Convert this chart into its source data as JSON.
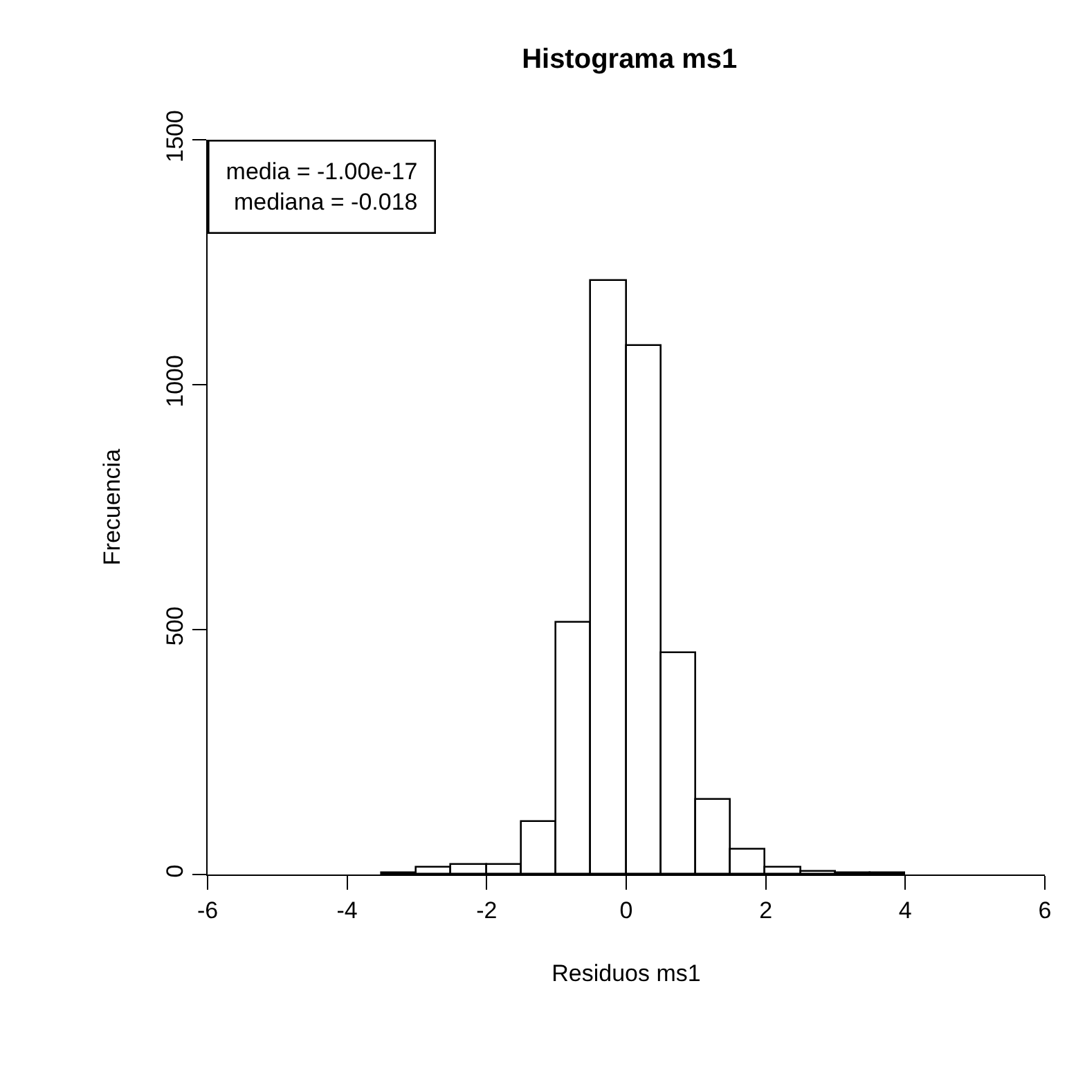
{
  "chart_data": {
    "type": "histogram",
    "title": "Histograma ms1",
    "xlabel": "Residuos ms1",
    "ylabel": "Frecuencia",
    "bins": [
      -3.5,
      -3,
      -2.5,
      -2,
      -1.5,
      -1,
      -0.5,
      0,
      0.5,
      1,
      1.5,
      2,
      2.5,
      3,
      3.5,
      4
    ],
    "values": [
      2,
      15,
      19,
      19,
      108,
      514,
      1212,
      1080,
      452,
      152,
      50,
      15,
      6,
      2,
      2
    ],
    "color": "#ffffff",
    "xlim": [
      -6,
      6
    ],
    "xticks": [
      -6,
      -4,
      -2,
      0,
      2,
      4,
      6
    ],
    "ylim": [
      0,
      1500
    ],
    "yticks": [
      0,
      500,
      1000,
      1500
    ],
    "annotations": [
      "media = -1.00e-17",
      "mediana = -0.018"
    ]
  }
}
